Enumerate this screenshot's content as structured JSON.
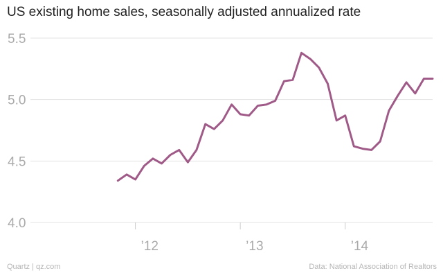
{
  "chart_data": {
    "type": "line",
    "title": "US existing home sales, seasonally adjusted annualized rate",
    "xlabel": "",
    "ylabel": "",
    "ylim": [
      4.0,
      5.5
    ],
    "yticks": [
      "4.0",
      "4.5",
      "5.0",
      "5.5"
    ],
    "xticks": [
      {
        "label": "’12",
        "value": 2012.0
      },
      {
        "label": "’13",
        "value": 2013.0
      },
      {
        "label": "’14",
        "value": 2014.0
      }
    ],
    "grid": true,
    "series": [
      {
        "name": "Existing home sales",
        "color": "#a05a88",
        "x": [
          2011.833,
          2011.917,
          2012.0,
          2012.083,
          2012.167,
          2012.25,
          2012.333,
          2012.417,
          2012.5,
          2012.583,
          2012.667,
          2012.75,
          2012.833,
          2012.917,
          2013.0,
          2013.083,
          2013.167,
          2013.25,
          2013.333,
          2013.417,
          2013.5,
          2013.583,
          2013.667,
          2013.75,
          2013.833,
          2013.917,
          2014.0,
          2014.083,
          2014.167,
          2014.25,
          2014.333,
          2014.417,
          2014.5,
          2014.583,
          2014.667,
          2014.75,
          2014.833
        ],
        "values": [
          4.34,
          4.39,
          4.35,
          4.46,
          4.52,
          4.48,
          4.55,
          4.59,
          4.49,
          4.59,
          4.8,
          4.76,
          4.83,
          4.96,
          4.88,
          4.87,
          4.95,
          4.96,
          4.99,
          5.15,
          5.16,
          5.38,
          5.33,
          5.26,
          5.13,
          4.83,
          4.87,
          4.62,
          4.6,
          4.59,
          4.66,
          4.91,
          5.03,
          5.14,
          5.05,
          5.17,
          5.17
        ]
      }
    ]
  },
  "footer": {
    "left": "Quartz | qz.com",
    "right": "Data: National Association of Realtors"
  },
  "colors": {
    "line": "#a05a88",
    "grid": "#e3e3e3",
    "tick_label": "#aaaaaa"
  }
}
